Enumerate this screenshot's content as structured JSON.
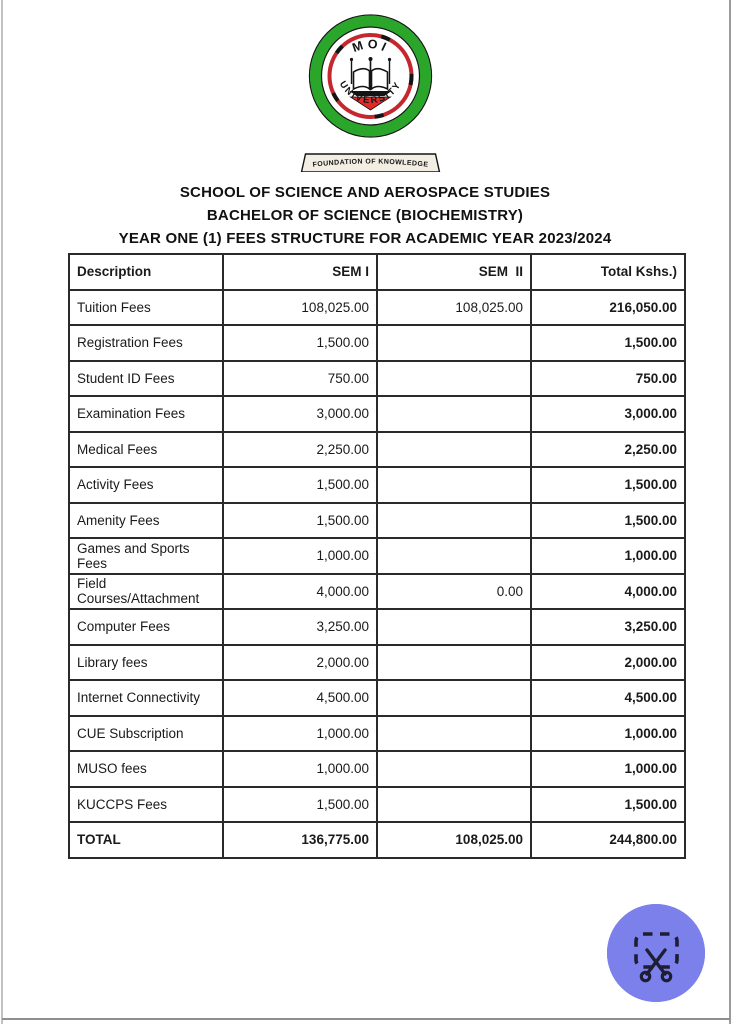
{
  "logo": {
    "university_short": "MOI",
    "university_word": "UNIVERSITY",
    "banner_text": "FOUNDATION OF KNOWLEDGE",
    "ring_green": "#2aa62b",
    "ring_red": "#c5272e",
    "emblem_red": "#e22a28",
    "banner_bg": "#f2eee3",
    "outline": "#141414"
  },
  "titles": {
    "line1": "SCHOOL OF SCIENCE AND AEROSPACE STUDIES",
    "line2": "BACHELOR OF SCIENCE (BIOCHEMISTRY)",
    "line3": "YEAR ONE (1) FEES STRUCTURE FOR ACADEMIC YEAR 2023/2024"
  },
  "table": {
    "headers": {
      "description": "Description",
      "sem1": "SEM I",
      "sem2": "SEM  II",
      "total": "Total Kshs.)"
    },
    "rows": [
      {
        "description": "Tuition Fees",
        "sem1": "108,025.00",
        "sem2": "108,025.00",
        "total": "216,050.00"
      },
      {
        "description": "Registration Fees",
        "sem1": "1,500.00",
        "sem2": "",
        "total": "1,500.00"
      },
      {
        "description": "Student ID Fees",
        "sem1": "750.00",
        "sem2": "",
        "total": "750.00"
      },
      {
        "description": "Examination Fees",
        "sem1": "3,000.00",
        "sem2": "",
        "total": "3,000.00"
      },
      {
        "description": "Medical Fees",
        "sem1": "2,250.00",
        "sem2": "",
        "total": "2,250.00"
      },
      {
        "description": "Activity Fees",
        "sem1": "1,500.00",
        "sem2": "",
        "total": "1,500.00"
      },
      {
        "description": "Amenity Fees",
        "sem1": "1,500.00",
        "sem2": "",
        "total": "1,500.00"
      },
      {
        "description": "Games and Sports Fees",
        "sem1": "1,000.00",
        "sem2": "",
        "total": "1,000.00"
      },
      {
        "description": "Field Courses/Attachment",
        "sem1": "4,000.00",
        "sem2": "0.00",
        "total": "4,000.00"
      },
      {
        "description": "Computer Fees",
        "sem1": "3,250.00",
        "sem2": "",
        "total": "3,250.00"
      },
      {
        "description": "Library fees",
        "sem1": "2,000.00",
        "sem2": "",
        "total": "2,000.00"
      },
      {
        "description": "Internet Connectivity",
        "sem1": "4,500.00",
        "sem2": "",
        "total": "4,500.00"
      },
      {
        "description": "CUE Subscription",
        "sem1": "1,000.00",
        "sem2": "",
        "total": "1,000.00"
      },
      {
        "description": "MUSO fees",
        "sem1": "1,000.00",
        "sem2": "",
        "total": "1,000.00"
      },
      {
        "description": "KUCCPS Fees",
        "sem1": "1,500.00",
        "sem2": "",
        "total": "1,500.00"
      }
    ],
    "total_row": {
      "label": "TOTAL",
      "sem1": "136,775.00",
      "sem2": "108,025.00",
      "total": "244,800.00"
    }
  },
  "snip_button": {
    "color": "#7c80ea",
    "icon_color": "#1d1d33"
  }
}
